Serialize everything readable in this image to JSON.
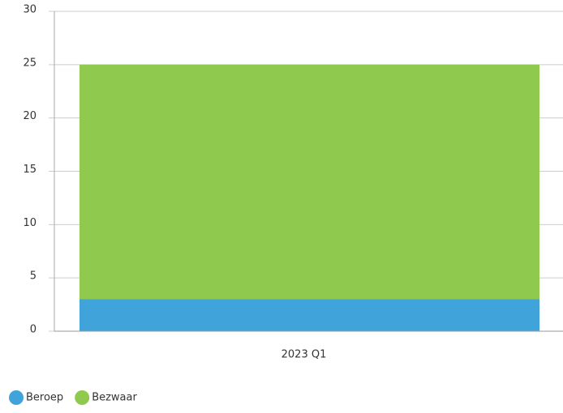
{
  "chart_data": {
    "type": "stacked-bar",
    "categories": [
      "2023 Q1"
    ],
    "series": [
      {
        "name": "Beroep",
        "color": "#40a4da",
        "values": [
          3
        ]
      },
      {
        "name": "Bezwaar",
        "color": "#8fc94e",
        "values": [
          22
        ]
      }
    ],
    "ylim": [
      0,
      30
    ],
    "yticks": [
      0,
      5,
      10,
      15,
      20,
      25,
      30
    ],
    "grid": true,
    "legend": "bottom-left"
  }
}
